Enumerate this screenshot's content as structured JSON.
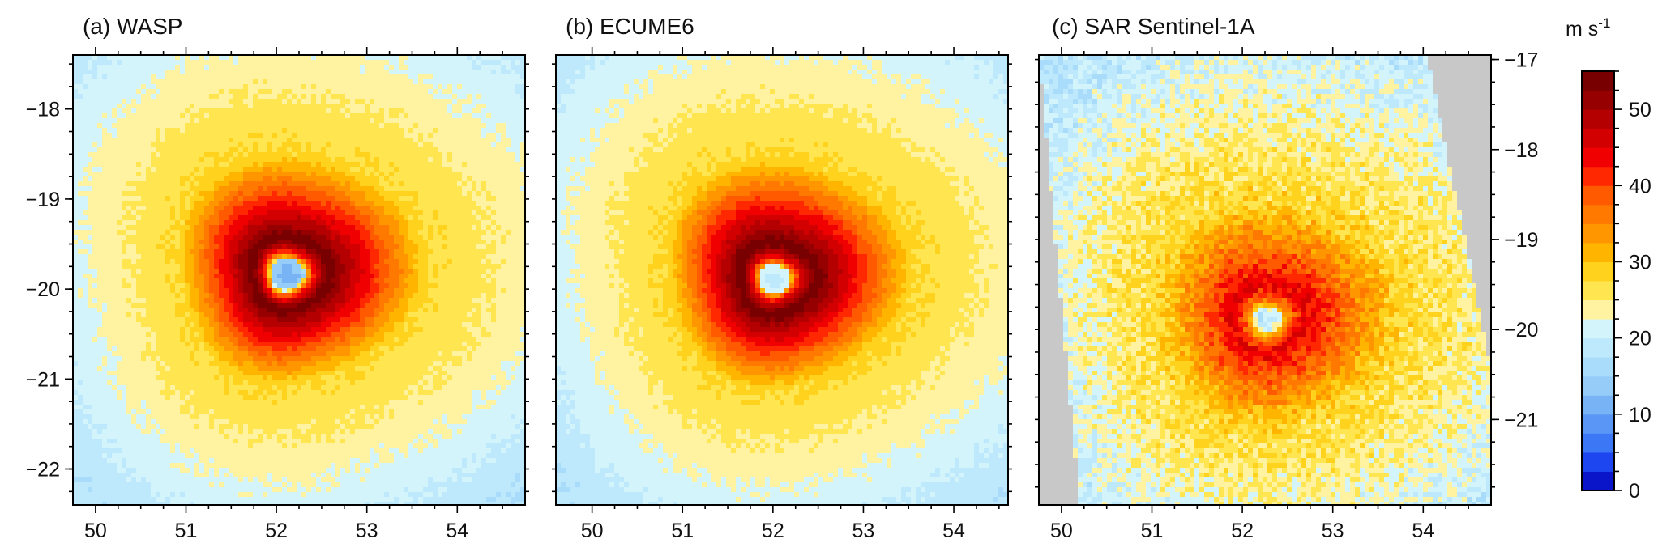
{
  "chart_data": [
    {
      "type": "heatmap",
      "title": "(a) WASP",
      "x_ticks": [
        50,
        51,
        52,
        53,
        54
      ],
      "y_ticks": [
        -18,
        -19,
        -20,
        -21,
        -22
      ],
      "xlim": [
        49.75,
        54.75
      ],
      "ylim": [
        -22.4,
        -17.4
      ],
      "y_axis_side": "left",
      "eye_center": [
        52.1,
        -19.85
      ],
      "peak_wind": 55,
      "eye_wind": 10,
      "eye_radius_deg": 0.18,
      "rmw_deg": 0.42,
      "gale_radius_deg": 1.35
    },
    {
      "type": "heatmap",
      "title": "(b) ECUME6",
      "x_ticks": [
        50,
        51,
        52,
        53,
        54
      ],
      "y_ticks": [],
      "xlim": [
        49.6,
        54.6
      ],
      "ylim": [
        -22.4,
        -17.4
      ],
      "y_axis_side": "none",
      "eye_center": [
        52.0,
        -19.9
      ],
      "peak_wind": 55,
      "eye_wind": 18,
      "eye_radius_deg": 0.17,
      "rmw_deg": 0.42,
      "gale_radius_deg": 1.35
    },
    {
      "type": "heatmap",
      "title": "(c) SAR Sentinel-1A",
      "x_ticks": [
        50,
        51,
        52,
        53,
        54
      ],
      "y_ticks": [
        "−17",
        "−18",
        "−19",
        "−20",
        "−21"
      ],
      "y_tick_values": [
        -17,
        -18,
        -19,
        -20,
        -21
      ],
      "xlim": [
        49.75,
        54.75
      ],
      "ylim": [
        -21.95,
        -16.95
      ],
      "y_axis_side": "right",
      "eye_center": [
        52.25,
        -19.9
      ],
      "peak_wind": 45,
      "eye_wind": 18,
      "eye_radius_deg": 0.15,
      "rmw_deg": 0.4,
      "gale_radius_deg": 1.3,
      "no_data_color": "#c8c8c8"
    }
  ],
  "y_tick_labels_left": [
    "−18",
    "−19",
    "−20",
    "−21",
    "−22"
  ],
  "colorbar": {
    "unit": "m s",
    "unit_sup": "-1",
    "min": 0,
    "max": 55,
    "step": 2.5,
    "tick_labels": [
      "0",
      "10",
      "20",
      "30",
      "40",
      "50"
    ],
    "tick_values": [
      0,
      10,
      20,
      30,
      40,
      50
    ],
    "colors": [
      "#0a14c8",
      "#1e46f0",
      "#3c78f5",
      "#5a96f5",
      "#78b4f5",
      "#96cdf8",
      "#a8dcfa",
      "#bee8fb",
      "#d4f4fb",
      "#fff2a0",
      "#ffe650",
      "#ffd21e",
      "#ffb400",
      "#ff9600",
      "#ff7800",
      "#ff5a00",
      "#ff2800",
      "#f00000",
      "#d20000",
      "#b40000",
      "#960000",
      "#780000"
    ]
  }
}
